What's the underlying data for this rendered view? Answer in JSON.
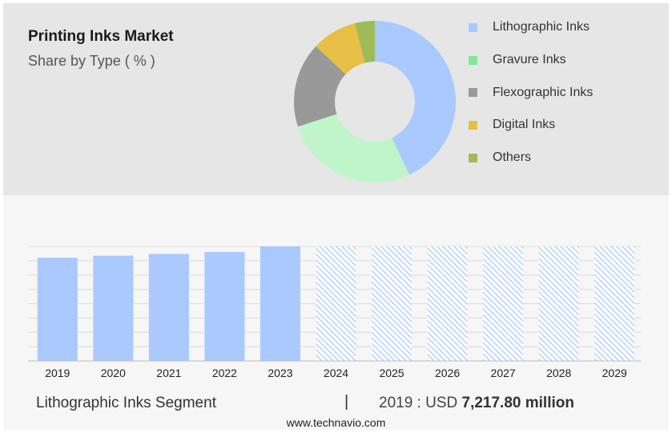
{
  "title": "Printing Inks Market",
  "subtitle": "Share by Type ( % )",
  "legend": [
    {
      "label": "Lithographic Inks",
      "color": "#a9c9ff"
    },
    {
      "label": "Gravure Inks",
      "color": "#7fe89a"
    },
    {
      "label": "Flexographic Inks",
      "color": "#999999"
    },
    {
      "label": "Digital Inks",
      "color": "#e8bf45"
    },
    {
      "label": "Others",
      "color": "#9fbb58"
    }
  ],
  "footer": {
    "segment_label": "Lithographic Inks Segment",
    "separator": "|",
    "year_prefix": "2019 : USD ",
    "value": "7,217.80 million"
  },
  "source": "www.technavio.com",
  "chart_data": [
    {
      "type": "pie",
      "variant": "donut",
      "categories": [
        "Lithographic Inks",
        "Gravure Inks",
        "Flexographic Inks",
        "Digital Inks",
        "Others"
      ],
      "values": [
        43,
        27,
        17,
        9,
        4
      ],
      "colors": [
        "#a9c9ff",
        "#bff5c8",
        "#999999",
        "#e8bf45",
        "#9fbb58"
      ]
    },
    {
      "type": "bar",
      "categories": [
        "2019",
        "2020",
        "2021",
        "2022",
        "2023",
        "2024",
        "2025",
        "2026",
        "2027",
        "2028",
        "2029"
      ],
      "values": [
        7217.8,
        7360,
        7480,
        7620,
        8000,
        8000,
        8000,
        8000,
        8000,
        8000,
        8000
      ],
      "forecast_from": "2024",
      "ylim": [
        0,
        8000
      ],
      "grid": true,
      "color": "#a9c9ff",
      "forecast_style": "hatched"
    }
  ]
}
